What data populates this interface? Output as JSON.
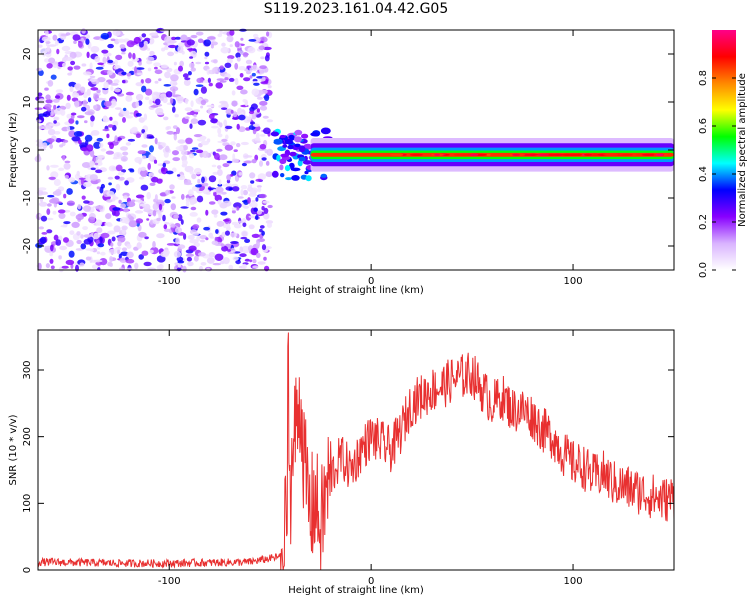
{
  "title": "S119.2023.161.04.42.G05",
  "chart_data": [
    {
      "type": "heatmap",
      "xlabel": "Height of straight line (km)",
      "ylabel": "Frequency (Hz)",
      "xlim": [
        -165,
        150
      ],
      "ylim": [
        -25,
        25
      ],
      "xticks": [
        -100,
        0,
        100
      ],
      "yticks": [
        -20,
        -10,
        0,
        10,
        20
      ],
      "noise_region_x": [
        -165,
        -50
      ],
      "signal_onset_x": -50,
      "signal_center_freq_hz": -1,
      "colorbar": {
        "label": "Normalized spectral amplitude",
        "range": [
          0,
          1
        ],
        "ticks": [
          0.0,
          0.2,
          0.4,
          0.6,
          0.8
        ],
        "colors": [
          "#ffffff",
          "#d9b3ff",
          "#8800ff",
          "#0000ff",
          "#00ffff",
          "#00ff00",
          "#ffff00",
          "#ff8800",
          "#ff0000",
          "#ff0088"
        ]
      }
    },
    {
      "type": "line",
      "xlabel": "Height of straight line (km)",
      "ylabel": "SNR (10 * v/v)",
      "xlim": [
        -165,
        150
      ],
      "ylim": [
        0,
        360
      ],
      "xticks": [
        -100,
        0,
        100
      ],
      "yticks": [
        0,
        100,
        200,
        300
      ],
      "color": "#e83030",
      "series": [
        {
          "x": [
            -165,
            -140,
            -120,
            -100,
            -80,
            -60,
            -45,
            -42,
            -40,
            -38,
            -35,
            -33,
            -30,
            -28,
            -25,
            -22,
            -20,
            -15,
            -10,
            -5,
            0,
            5,
            10,
            15,
            20,
            25,
            30,
            35,
            40,
            45,
            50,
            55,
            60,
            65,
            70,
            75,
            80,
            85,
            90,
            95,
            100,
            105,
            110,
            115,
            120,
            125,
            130,
            135,
            140,
            145,
            150
          ],
          "y": [
            12,
            11,
            10,
            10,
            11,
            12,
            20,
            60,
            120,
            200,
            260,
            150,
            80,
            110,
            60,
            120,
            140,
            170,
            150,
            180,
            200,
            190,
            180,
            210,
            250,
            260,
            270,
            275,
            285,
            290,
            295,
            270,
            250,
            260,
            240,
            240,
            230,
            210,
            200,
            175,
            160,
            155,
            140,
            145,
            130,
            125,
            120,
            115,
            110,
            105,
            110
          ]
        }
      ]
    }
  ]
}
